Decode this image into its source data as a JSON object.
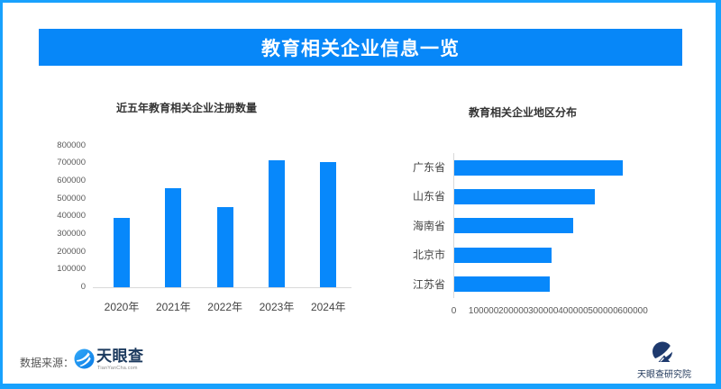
{
  "header": {
    "title": "教育相关企业信息一览"
  },
  "chart_data": [
    {
      "type": "bar",
      "title": "近五年教育相关企业注册数量",
      "categories": [
        "2020年",
        "2021年",
        "2022年",
        "2023年",
        "2024年"
      ],
      "values": [
        390000,
        560000,
        455000,
        715000,
        705000
      ],
      "xlabel": "",
      "ylabel": "",
      "ylim": [
        0,
        800000
      ],
      "ytick_step": 100000,
      "bar_color": "#0788fb",
      "grid": false,
      "legend": false
    },
    {
      "type": "bar-horizontal",
      "title": "教育相关企业地区分布",
      "categories": [
        "广东省",
        "山东省",
        "海南省",
        "北京市",
        "江苏省"
      ],
      "values": [
        565000,
        470000,
        400000,
        325000,
        320000
      ],
      "xlabel": "",
      "ylabel": "",
      "xlim": [
        0,
        600000
      ],
      "xtick_step": 100000,
      "bar_color": "#0788fb",
      "grid": false,
      "legend": false
    }
  ],
  "footer": {
    "source_label": "数据来源：",
    "source_logo_text": "天眼查",
    "source_logo_subtext": "TianYanCha.com",
    "researcher_logo_text": "天眼查研究院"
  },
  "colors": {
    "accent_blue": "#0788fb",
    "border_blue": "#18a1fd",
    "banner_blue": "#0787f8",
    "logo_navy": "#1e3a6e"
  }
}
